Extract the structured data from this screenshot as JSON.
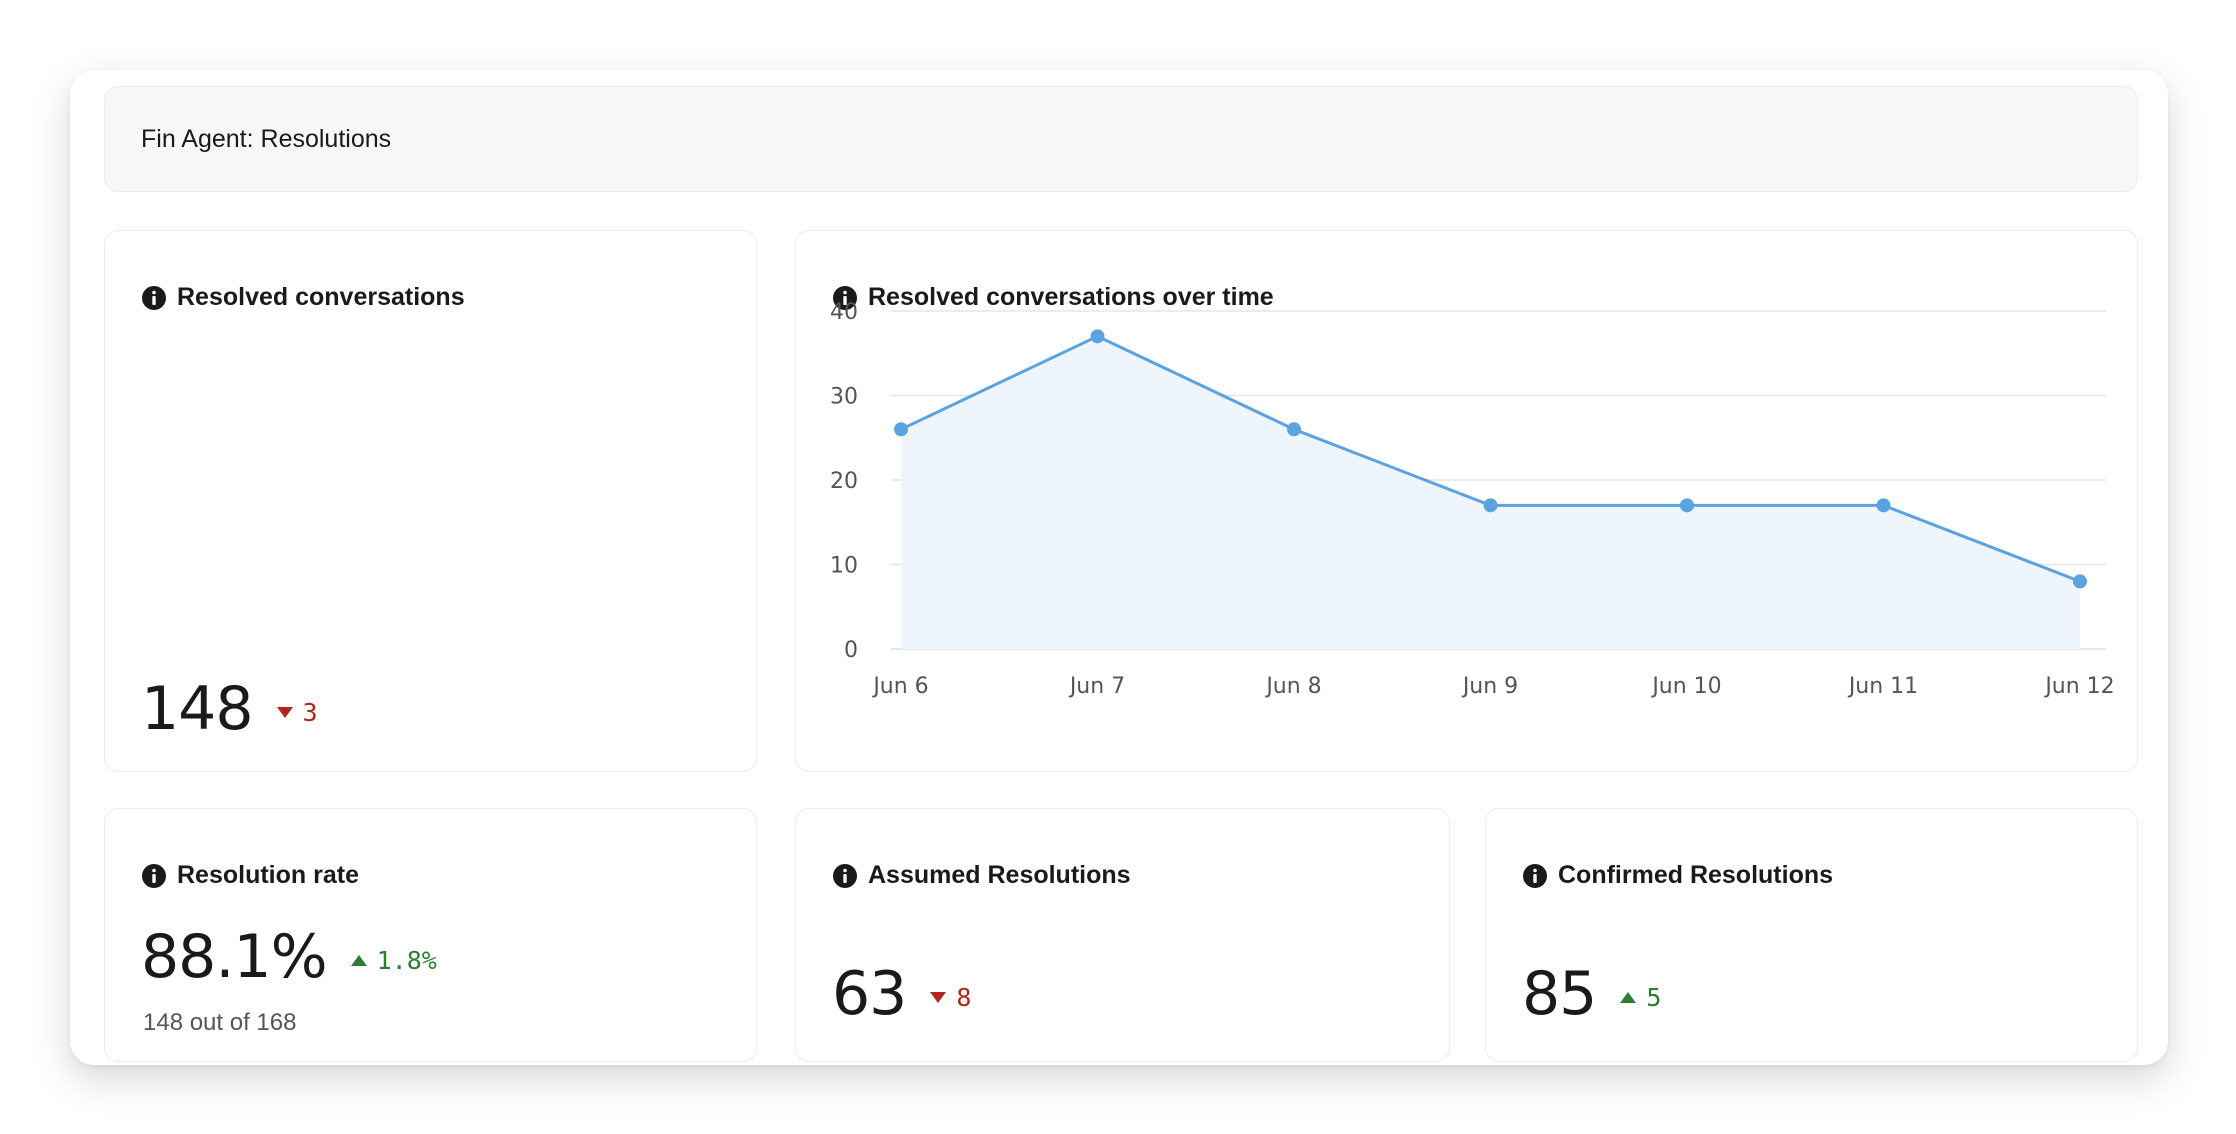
{
  "header": {
    "title": "Fin Agent: Resolutions"
  },
  "resolved_conversations": {
    "title": "Resolved conversations",
    "value": "148",
    "delta": "3",
    "delta_direction": "down"
  },
  "over_time": {
    "title": "Resolved conversations over time"
  },
  "resolution_rate": {
    "title": "Resolution rate",
    "value": "88.1%",
    "delta": "1.8%",
    "delta_direction": "up",
    "subtext": "148 out of 168"
  },
  "assumed_resolutions": {
    "title": "Assumed Resolutions",
    "value": "63",
    "delta": "8",
    "delta_direction": "down"
  },
  "confirmed_resolutions": {
    "title": "Confirmed Resolutions",
    "value": "85",
    "delta": "5",
    "delta_direction": "up"
  },
  "colors": {
    "line": "#5ba3e0",
    "fill": "#eef5fc",
    "grid": "#e6e6e6",
    "down": "#b3261e",
    "up": "#2e7d32"
  },
  "icons": {
    "info": "info-icon",
    "down": "triangle-down-icon",
    "up": "triangle-up-icon"
  },
  "chart_data": {
    "type": "area",
    "title": "Resolved conversations over time",
    "categories": [
      "Jun 6",
      "Jun 7",
      "Jun 8",
      "Jun 9",
      "Jun 10",
      "Jun 11",
      "Jun 12"
    ],
    "values": [
      26,
      37,
      26,
      17,
      17,
      17,
      8
    ],
    "yticks": [
      0,
      10,
      20,
      30,
      40
    ],
    "ylim": [
      0,
      40
    ],
    "grid": true,
    "legend": "none",
    "xlabel": "",
    "ylabel": ""
  }
}
